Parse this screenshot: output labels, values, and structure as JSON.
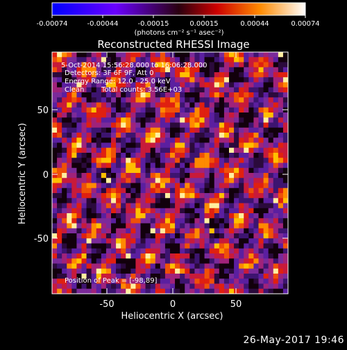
{
  "colorbar": {
    "ticks": [
      "-0.00074",
      "-0.00044",
      "-0.00015",
      "0.00015",
      "0.00044",
      "0.00074"
    ],
    "units_label": "(photons cm⁻² s⁻¹ asec⁻²)"
  },
  "plot": {
    "title": "Reconstructed RHESSI Image",
    "xlabel": "Heliocentric X (arcsec)",
    "ylabel": "Heliocentric Y (arcsec)",
    "x_ticks": [
      "-50",
      "0",
      "50"
    ],
    "y_ticks": [
      "50",
      "0",
      "-50"
    ],
    "annotations": {
      "time_range": "5-Oct-2014 15:56:28.000 to 16:06:28.000",
      "detectors": "Detectors: 3F 6F 9F, Att 0",
      "energy": "Energy Range: 12.0 - 25.0 keV",
      "clean": "Clean",
      "counts": "Total counts: 3.56E+03",
      "peak": "Position of Peak = [-98,89]"
    }
  },
  "footer": {
    "timestamp": "26-May-2017 19:46"
  },
  "colors": {
    "background": "#000000",
    "text": "#ffffff"
  }
}
